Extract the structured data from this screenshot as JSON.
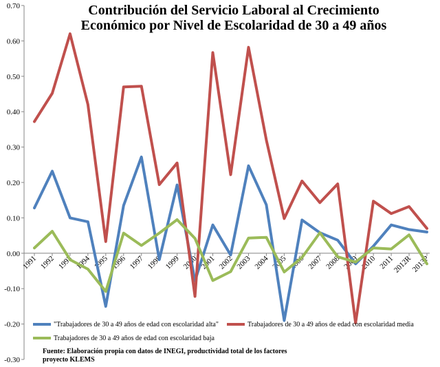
{
  "chart_data": {
    "type": "line",
    "title": "Contribución del Servicio Laboral al Crecimiento",
    "subtitle": "Económico  por Nivel de Escolaridad de 30 a 49 años",
    "ylim": [
      -0.3,
      0.7
    ],
    "yticks": [
      "0.70",
      "0.60",
      "0.50",
      "0.40",
      "0.30",
      "0.20",
      "0.10",
      "0.00",
      "-0.10",
      "-0.20",
      "-0.30"
    ],
    "ytick_values": [
      0.7,
      0.6,
      0.5,
      0.4,
      0.3,
      0.2,
      0.1,
      0.0,
      -0.1,
      -0.2,
      -0.3
    ],
    "categories": [
      "1991",
      "1992",
      "1993",
      "1994",
      "1995",
      "1996",
      "1997",
      "1998",
      "1999",
      "2000",
      "2001",
      "2002",
      "2003",
      "2004",
      "2005",
      "2006",
      "2007",
      "2008",
      "2009",
      "2010",
      "2011",
      "2012R",
      "2013P"
    ],
    "grid": false,
    "legend_position": "bottom",
    "series": [
      {
        "name": "\"Trabajadores de 30 a 49 años de edad con escolaridad alta\"",
        "color": "#4f81bd",
        "values": [
          0.128,
          0.232,
          0.1,
          0.089,
          -0.15,
          0.135,
          0.272,
          -0.018,
          0.193,
          -0.078,
          0.08,
          -0.005,
          0.247,
          0.137,
          -0.19,
          0.094,
          0.058,
          0.037,
          -0.03,
          0.02,
          0.08,
          0.067,
          0.06
        ]
      },
      {
        "name": "Trabajadores de 30 a 49 años de edad con escolaridad media",
        "color": "#c0504d",
        "values": [
          0.372,
          0.452,
          0.62,
          0.42,
          0.033,
          0.47,
          0.472,
          0.194,
          0.255,
          -0.122,
          0.567,
          0.222,
          0.582,
          0.32,
          0.098,
          0.204,
          0.143,
          0.196,
          -0.197,
          0.147,
          0.112,
          0.132,
          0.07
        ]
      },
      {
        "name": "Trabajadores de 30 a 49 años de edad con escolaridad baja",
        "color": "#9bbb59",
        "values": [
          0.015,
          0.062,
          -0.018,
          -0.045,
          -0.108,
          0.057,
          0.022,
          0.057,
          0.095,
          0.042,
          -0.077,
          -0.052,
          0.043,
          0.045,
          -0.053,
          -0.012,
          0.058,
          -0.01,
          -0.025,
          0.015,
          0.012,
          0.052,
          -0.03
        ]
      }
    ]
  },
  "source": {
    "line1": "Fuente: Elaboración propia con datos de INEGI, productividad total de los factores",
    "line2": "proyecto KLEMS"
  }
}
